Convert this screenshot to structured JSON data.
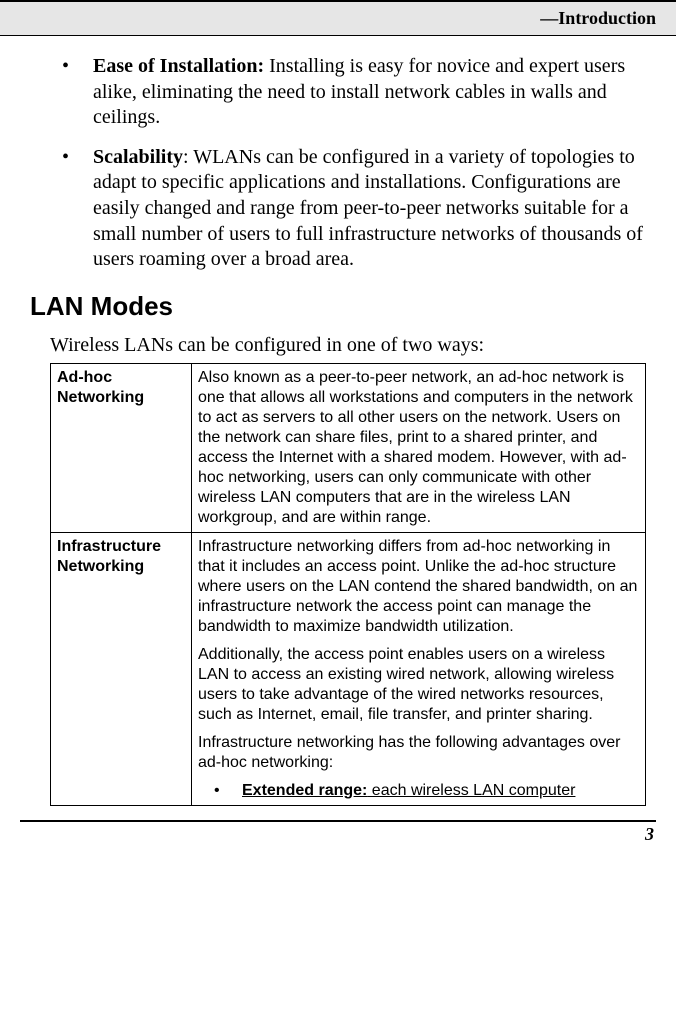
{
  "header": {
    "title": "—Introduction"
  },
  "bullets": [
    {
      "label": "Ease of Installation:",
      "text": " Installing is easy for novice and expert users alike, eliminating the need to install network cables in walls and ceilings."
    },
    {
      "label": "Scalability",
      "text": ": WLANs can be configured in a variety of topologies to adapt to specific applications and installations. Configurations are easily changed and range from peer-to-peer networks suitable for a small number of users to full infrastructure networks of thousands of users roaming over a broad area."
    }
  ],
  "section_heading": "LAN Modes",
  "intro_line": "Wireless LANs can be configured in one of two ways:",
  "table": {
    "row1": {
      "label": "Ad-hoc Networking",
      "desc": "Also known as a peer-to-peer network, an ad-hoc network is one that allows all workstations and computers in the network to act as servers to all other users on the network. Users on the network can share files, print to a shared printer, and access the Internet with a shared modem. However, with ad-hoc networking, users can only communicate with other wireless LAN computers that are in the wireless LAN workgroup, and are within range."
    },
    "row2": {
      "label": "Infrastructure Networking",
      "p1": "Infrastructure networking differs from ad-hoc networking in that it includes an access point. Unlike the ad-hoc structure where users on the LAN contend the shared bandwidth, on an infrastructure network the access point can manage the bandwidth to maximize bandwidth utilization.",
      "p2": "Additionally, the access point enables users on a wireless LAN to access an existing wired network, allowing wireless users to take advantage of the wired networks resources, such as Internet, email, file transfer, and printer sharing.",
      "p3": "Infrastructure networking has the following advantages over ad-hoc networking:",
      "bullet_label": "Extended range:",
      "bullet_text": " each wireless LAN computer"
    }
  },
  "page_number": "3"
}
